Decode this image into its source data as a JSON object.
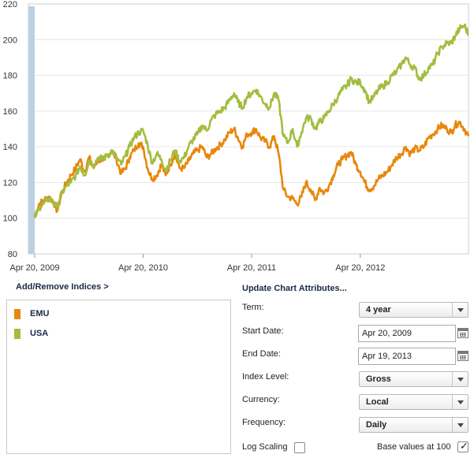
{
  "chart_data": {
    "type": "line",
    "x_labels": [
      "Apr 20, 2009",
      "Apr 20, 2010",
      "Apr 20, 2011",
      "Apr 20, 2012"
    ],
    "x_range": [
      "2009-04-20",
      "2013-04-19"
    ],
    "ylim": [
      80,
      220
    ],
    "y_ticks": [
      80,
      100,
      120,
      140,
      160,
      180,
      200,
      220
    ],
    "grid": true,
    "series": [
      {
        "name": "EMU",
        "color": "#e8870b",
        "points": [
          [
            "2009-04-20",
            101
          ],
          [
            "2009-05-05",
            108
          ],
          [
            "2009-05-20",
            110
          ],
          [
            "2009-06-05",
            112
          ],
          [
            "2009-06-20",
            110
          ],
          [
            "2009-07-05",
            104
          ],
          [
            "2009-07-20",
            114
          ],
          [
            "2009-08-05",
            120
          ],
          [
            "2009-08-20",
            124
          ],
          [
            "2009-09-05",
            128
          ],
          [
            "2009-09-20",
            133
          ],
          [
            "2009-10-05",
            126
          ],
          [
            "2009-10-20",
            134
          ],
          [
            "2009-11-05",
            128
          ],
          [
            "2009-11-20",
            133
          ],
          [
            "2009-12-05",
            132
          ],
          [
            "2009-12-20",
            135
          ],
          [
            "2010-01-05",
            138
          ],
          [
            "2010-01-20",
            133
          ],
          [
            "2010-02-05",
            125
          ],
          [
            "2010-02-20",
            128
          ],
          [
            "2010-03-05",
            134
          ],
          [
            "2010-03-20",
            138
          ],
          [
            "2010-04-05",
            142
          ],
          [
            "2010-04-20",
            140
          ],
          [
            "2010-05-05",
            128
          ],
          [
            "2010-05-20",
            122
          ],
          [
            "2010-06-05",
            124
          ],
          [
            "2010-06-20",
            130
          ],
          [
            "2010-07-05",
            124
          ],
          [
            "2010-07-20",
            130
          ],
          [
            "2010-08-05",
            136
          ],
          [
            "2010-08-20",
            128
          ],
          [
            "2010-09-05",
            128
          ],
          [
            "2010-09-20",
            132
          ],
          [
            "2010-10-05",
            136
          ],
          [
            "2010-10-20",
            138
          ],
          [
            "2010-11-05",
            140
          ],
          [
            "2010-11-20",
            134
          ],
          [
            "2010-12-05",
            136
          ],
          [
            "2010-12-20",
            139
          ],
          [
            "2011-01-05",
            141
          ],
          [
            "2011-01-20",
            144
          ],
          [
            "2011-02-05",
            148
          ],
          [
            "2011-02-20",
            150
          ],
          [
            "2011-03-05",
            145
          ],
          [
            "2011-03-20",
            140
          ],
          [
            "2011-04-05",
            147
          ],
          [
            "2011-04-20",
            148
          ],
          [
            "2011-05-05",
            150
          ],
          [
            "2011-05-20",
            145
          ],
          [
            "2011-06-05",
            143
          ],
          [
            "2011-06-20",
            140
          ],
          [
            "2011-07-05",
            146
          ],
          [
            "2011-07-20",
            136
          ],
          [
            "2011-08-05",
            116
          ],
          [
            "2011-08-20",
            112
          ],
          [
            "2011-09-05",
            111
          ],
          [
            "2011-09-20",
            108
          ],
          [
            "2011-10-05",
            112
          ],
          [
            "2011-10-20",
            120
          ],
          [
            "2011-11-05",
            116
          ],
          [
            "2011-11-20",
            110
          ],
          [
            "2011-12-05",
            117
          ],
          [
            "2011-12-20",
            114
          ],
          [
            "2012-01-05",
            118
          ],
          [
            "2012-01-20",
            124
          ],
          [
            "2012-02-05",
            130
          ],
          [
            "2012-02-20",
            133
          ],
          [
            "2012-03-05",
            135
          ],
          [
            "2012-03-20",
            137
          ],
          [
            "2012-04-05",
            130
          ],
          [
            "2012-04-20",
            126
          ],
          [
            "2012-05-05",
            120
          ],
          [
            "2012-05-20",
            116
          ],
          [
            "2012-06-05",
            118
          ],
          [
            "2012-06-20",
            122
          ],
          [
            "2012-07-05",
            124
          ],
          [
            "2012-07-20",
            126
          ],
          [
            "2012-08-05",
            130
          ],
          [
            "2012-08-20",
            134
          ],
          [
            "2012-09-05",
            136
          ],
          [
            "2012-09-20",
            140
          ],
          [
            "2012-10-05",
            136
          ],
          [
            "2012-10-20",
            139
          ],
          [
            "2012-11-05",
            138
          ],
          [
            "2012-11-20",
            140
          ],
          [
            "2012-12-05",
            145
          ],
          [
            "2012-12-20",
            147
          ],
          [
            "2013-01-05",
            150
          ],
          [
            "2013-01-20",
            152
          ],
          [
            "2013-02-05",
            150
          ],
          [
            "2013-02-20",
            148
          ],
          [
            "2013-03-05",
            152
          ],
          [
            "2013-03-20",
            154
          ],
          [
            "2013-04-05",
            150
          ],
          [
            "2013-04-19",
            146
          ]
        ]
      },
      {
        "name": "USA",
        "color": "#a3bd3f",
        "points": [
          [
            "2009-04-20",
            100
          ],
          [
            "2009-05-05",
            106
          ],
          [
            "2009-05-20",
            108
          ],
          [
            "2009-06-05",
            111
          ],
          [
            "2009-06-20",
            109
          ],
          [
            "2009-07-05",
            106
          ],
          [
            "2009-07-20",
            114
          ],
          [
            "2009-08-05",
            118
          ],
          [
            "2009-08-20",
            120
          ],
          [
            "2009-09-05",
            124
          ],
          [
            "2009-09-20",
            129
          ],
          [
            "2009-10-05",
            124
          ],
          [
            "2009-10-20",
            132
          ],
          [
            "2009-11-05",
            130
          ],
          [
            "2009-11-20",
            134
          ],
          [
            "2009-12-05",
            133
          ],
          [
            "2009-12-20",
            135
          ],
          [
            "2010-01-05",
            138
          ],
          [
            "2010-01-20",
            134
          ],
          [
            "2010-02-05",
            130
          ],
          [
            "2010-02-20",
            135
          ],
          [
            "2010-03-05",
            140
          ],
          [
            "2010-03-20",
            145
          ],
          [
            "2010-04-05",
            148
          ],
          [
            "2010-04-20",
            149
          ],
          [
            "2010-05-05",
            141
          ],
          [
            "2010-05-20",
            131
          ],
          [
            "2010-06-05",
            136
          ],
          [
            "2010-06-20",
            133
          ],
          [
            "2010-07-05",
            127
          ],
          [
            "2010-07-20",
            132
          ],
          [
            "2010-08-05",
            138
          ],
          [
            "2010-08-20",
            132
          ],
          [
            "2010-09-05",
            134
          ],
          [
            "2010-09-20",
            140
          ],
          [
            "2010-10-05",
            144
          ],
          [
            "2010-10-20",
            147
          ],
          [
            "2010-11-05",
            152
          ],
          [
            "2010-11-20",
            149
          ],
          [
            "2010-12-05",
            155
          ],
          [
            "2010-12-20",
            158
          ],
          [
            "2011-01-05",
            160
          ],
          [
            "2011-01-20",
            162
          ],
          [
            "2011-02-05",
            166
          ],
          [
            "2011-02-20",
            170
          ],
          [
            "2011-03-05",
            165
          ],
          [
            "2011-03-20",
            162
          ],
          [
            "2011-04-05",
            168
          ],
          [
            "2011-04-20",
            170
          ],
          [
            "2011-05-05",
            172
          ],
          [
            "2011-05-20",
            168
          ],
          [
            "2011-06-05",
            164
          ],
          [
            "2011-06-20",
            162
          ],
          [
            "2011-07-05",
            170
          ],
          [
            "2011-07-20",
            166
          ],
          [
            "2011-08-05",
            146
          ],
          [
            "2011-08-20",
            142
          ],
          [
            "2011-09-05",
            150
          ],
          [
            "2011-09-20",
            140
          ],
          [
            "2011-10-05",
            148
          ],
          [
            "2011-10-20",
            156
          ],
          [
            "2011-11-05",
            156
          ],
          [
            "2011-11-20",
            150
          ],
          [
            "2011-12-05",
            154
          ],
          [
            "2011-12-20",
            156
          ],
          [
            "2012-01-05",
            160
          ],
          [
            "2012-01-20",
            164
          ],
          [
            "2012-02-05",
            168
          ],
          [
            "2012-02-20",
            172
          ],
          [
            "2012-03-05",
            174
          ],
          [
            "2012-03-20",
            178
          ],
          [
            "2012-04-05",
            176
          ],
          [
            "2012-04-20",
            176
          ],
          [
            "2012-05-05",
            172
          ],
          [
            "2012-05-20",
            165
          ],
          [
            "2012-06-05",
            168
          ],
          [
            "2012-06-20",
            172
          ],
          [
            "2012-07-05",
            174
          ],
          [
            "2012-07-20",
            176
          ],
          [
            "2012-08-05",
            180
          ],
          [
            "2012-08-20",
            182
          ],
          [
            "2012-09-05",
            186
          ],
          [
            "2012-09-20",
            190
          ],
          [
            "2012-10-05",
            186
          ],
          [
            "2012-10-20",
            184
          ],
          [
            "2012-11-05",
            178
          ],
          [
            "2012-11-20",
            180
          ],
          [
            "2012-12-05",
            184
          ],
          [
            "2012-12-20",
            186
          ],
          [
            "2013-01-05",
            192
          ],
          [
            "2013-01-20",
            196
          ],
          [
            "2013-02-05",
            198
          ],
          [
            "2013-02-20",
            198
          ],
          [
            "2013-03-05",
            202
          ],
          [
            "2013-03-20",
            206
          ],
          [
            "2013-04-05",
            208
          ],
          [
            "2013-04-19",
            203
          ]
        ]
      }
    ]
  },
  "indices": {
    "title": "Add/Remove Indices >",
    "items": [
      {
        "label": "EMU",
        "color": "#e8870b"
      },
      {
        "label": "USA",
        "color": "#a3bd3f"
      }
    ]
  },
  "attributes": {
    "title": "Update Chart Attributes...",
    "term_label": "Term:",
    "term_value": "4 year",
    "start_label": "Start Date:",
    "start_value": "Apr 20, 2009",
    "end_label": "End Date:",
    "end_value": "Apr 19, 2013",
    "index_level_label": "Index Level:",
    "index_level_value": "Gross",
    "currency_label": "Currency:",
    "currency_value": "Local",
    "frequency_label": "Frequency:",
    "frequency_value": "Daily",
    "log_label": "Log Scaling",
    "log_checked": false,
    "base_label": "Base values at 100",
    "base_checked": true
  }
}
